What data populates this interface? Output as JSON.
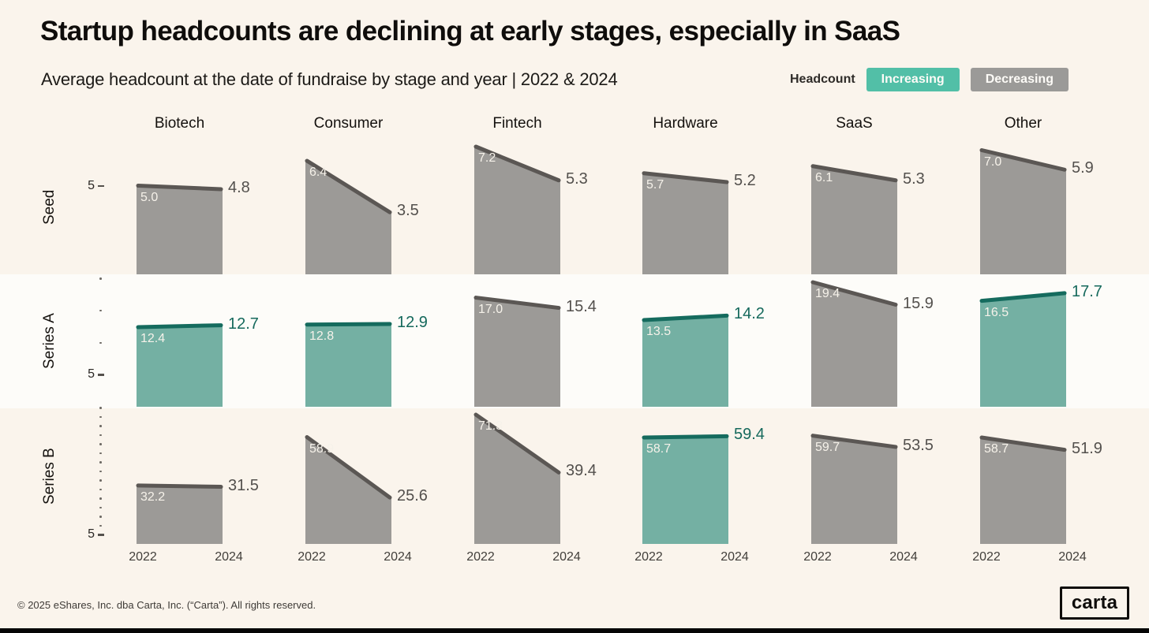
{
  "chart_data": {
    "type": "area",
    "title": "Startup headcounts are declining at early stages, especially in SaaS",
    "subtitle": "Average headcount at the date of fundraise by stage and year | 2022 & 2024",
    "x": [
      "2022",
      "2024"
    ],
    "columns": [
      "Biotech",
      "Consumer",
      "Fintech",
      "Hardware",
      "SaaS",
      "Other"
    ],
    "rows": [
      {
        "label": "Seed",
        "ylim": [
          0,
          7.5
        ],
        "values": [
          [
            5.0,
            4.8
          ],
          [
            6.4,
            3.5
          ],
          [
            7.2,
            5.3
          ],
          [
            5.7,
            5.2
          ],
          [
            6.1,
            5.3
          ],
          [
            7.0,
            5.9
          ]
        ]
      },
      {
        "label": "Series A",
        "ylim": [
          0,
          20.5
        ],
        "values": [
          [
            12.4,
            12.7
          ],
          [
            12.8,
            12.9
          ],
          [
            17.0,
            15.4
          ],
          [
            13.5,
            14.2
          ],
          [
            19.4,
            15.9
          ],
          [
            16.5,
            17.7
          ]
        ]
      },
      {
        "label": "Series B",
        "ylim": [
          0,
          75
        ],
        "values": [
          [
            32.2,
            31.5
          ],
          [
            58.9,
            25.6
          ],
          [
            71.3,
            39.4
          ],
          [
            58.7,
            59.4
          ],
          [
            59.7,
            53.5
          ],
          [
            58.7,
            51.9
          ]
        ]
      }
    ],
    "axis": {
      "tick_interval": 5,
      "labeled_tick": "5"
    },
    "legend": {
      "label": "Headcount",
      "items": [
        {
          "label": "Increasing",
          "color": "#52bfa7"
        },
        {
          "label": "Decreasing",
          "color": "#9b9a98"
        }
      ]
    },
    "colors": {
      "increasing_fill": "#74b0a3",
      "increasing_line": "#156b5e",
      "increasing_label": "#15695c",
      "decreasing_fill": "#9c9a97",
      "decreasing_line": "#5b5754",
      "decreasing_label": "#53504d",
      "value_label_inside": "#f6f2ea"
    }
  },
  "footer": {
    "copyright": "© 2025 eShares, Inc. dba Carta, Inc. (“Carta”). All rights reserved.",
    "logo_text": "carta"
  }
}
